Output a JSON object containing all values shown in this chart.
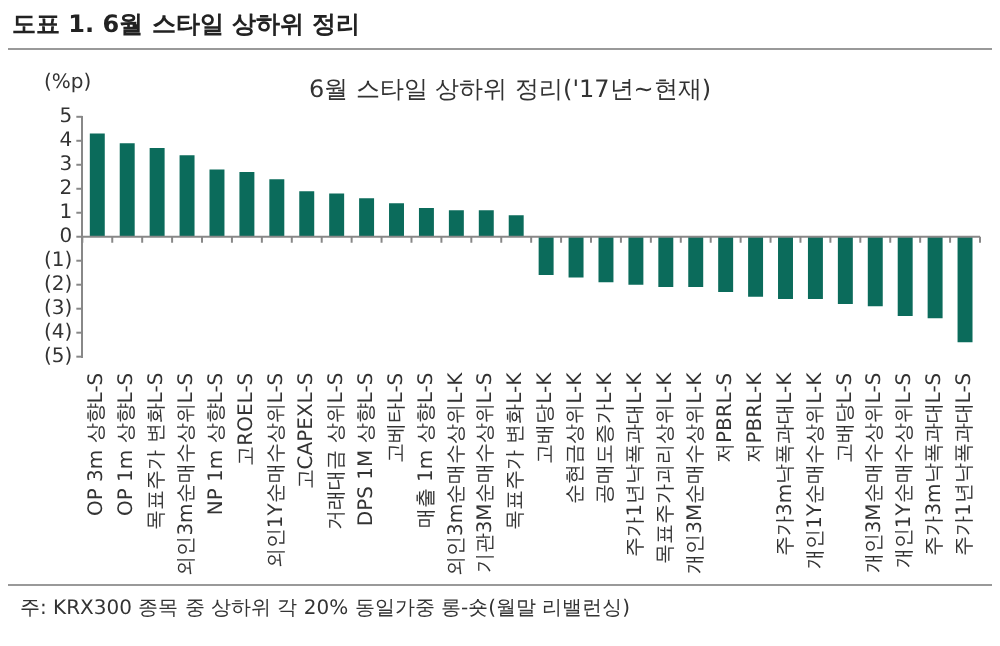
{
  "chart_data": {
    "type": "bar",
    "title": "도표 1. 6월 스타일 상하위 정리",
    "subtitle": "6월 스타일 상하위 정리('17년~현재)",
    "ylabel": "(%p)",
    "categories": [
      "OP 3m 상향L-S",
      "OP 1m 상향L-S",
      "목표주가 변화L-S",
      "외인3m순매수상위L-S",
      "NP 1m 상향L-S",
      "고ROEL-S",
      "외인1Y순매수상위L-S",
      "고CAPEXL-S",
      "거래대금 상위L-S",
      "DPS 1M 상향L-S",
      "고베타L-S",
      "매출 1m 상향L-S",
      "외인3m순매수상위L-K",
      "기관3M순매수상위L-S",
      "목표주가 변화L-K",
      "고배당L-K",
      "순현금상위L-K",
      "공매도증가L-K",
      "주가1년낙폭과대L-K",
      "목표주가괴리상위L-K",
      "개인3M순매수상위L-K",
      "저PBRL-S",
      "저PBRL-K",
      "주가3m낙폭과대L-K",
      "개인1Y순매수상위L-K",
      "고배당L-S",
      "개인3M순매수상위L-S",
      "개인1Y순매수상위L-S",
      "주가3m낙폭과대L-S",
      "주가1년낙폭과대L-S"
    ],
    "values": [
      4.3,
      3.9,
      3.7,
      3.4,
      2.8,
      2.7,
      2.4,
      1.9,
      1.8,
      1.6,
      1.4,
      1.2,
      1.1,
      1.1,
      0.9,
      -1.6,
      -1.7,
      -1.9,
      -2.0,
      -2.1,
      -2.1,
      -2.3,
      -2.5,
      -2.6,
      -2.6,
      -2.8,
      -2.9,
      -3.3,
      -3.4,
      -4.4
    ],
    "color": "#0b6b5b",
    "ylim": [
      -5,
      5
    ],
    "yticks": [
      {
        "value": -5,
        "label": "(5)"
      },
      {
        "value": -4,
        "label": "(4)"
      },
      {
        "value": -3,
        "label": "(3)"
      },
      {
        "value": -2,
        "label": "(2)"
      },
      {
        "value": -1,
        "label": "(1)"
      },
      0,
      1,
      2,
      3,
      4,
      5
    ],
    "grid": false,
    "ref_lines": [
      {
        "axis": "y",
        "value": 0,
        "color": "#888888"
      }
    ],
    "legend": false,
    "annotations": [
      "주: KRX300 종목 중 상하위 각 20% 동일가중 롱-숏(월말 리밸런싱)"
    ]
  }
}
